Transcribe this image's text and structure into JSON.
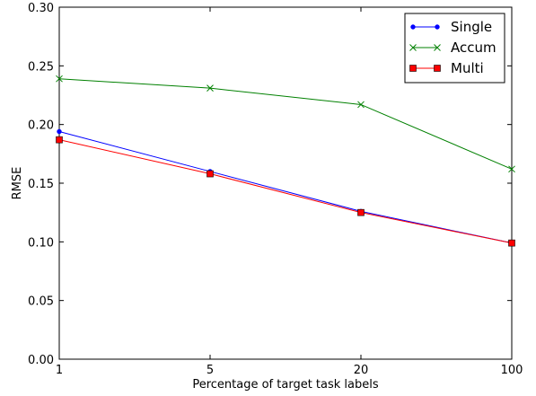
{
  "chart_data": {
    "type": "line",
    "title": "",
    "xlabel": "Percentage of target task labels",
    "ylabel": "RMSE",
    "x": [
      "1",
      "5",
      "20",
      "100"
    ],
    "ylim": [
      0.0,
      0.3
    ],
    "yticks": [
      "0.00",
      "0.05",
      "0.10",
      "0.15",
      "0.20",
      "0.25",
      "0.30"
    ],
    "grid": false,
    "legend_position": "top-right",
    "series": [
      {
        "name": "Single",
        "color": "#0000ff",
        "marker": "dot",
        "values": [
          0.194,
          0.16,
          0.126,
          0.099
        ]
      },
      {
        "name": "Accum",
        "color": "#008000",
        "marker": "x",
        "values": [
          0.239,
          0.231,
          0.217,
          0.162
        ]
      },
      {
        "name": "Multi",
        "color": "#ff0000",
        "marker": "square",
        "values": [
          0.187,
          0.158,
          0.125,
          0.099
        ]
      }
    ]
  }
}
